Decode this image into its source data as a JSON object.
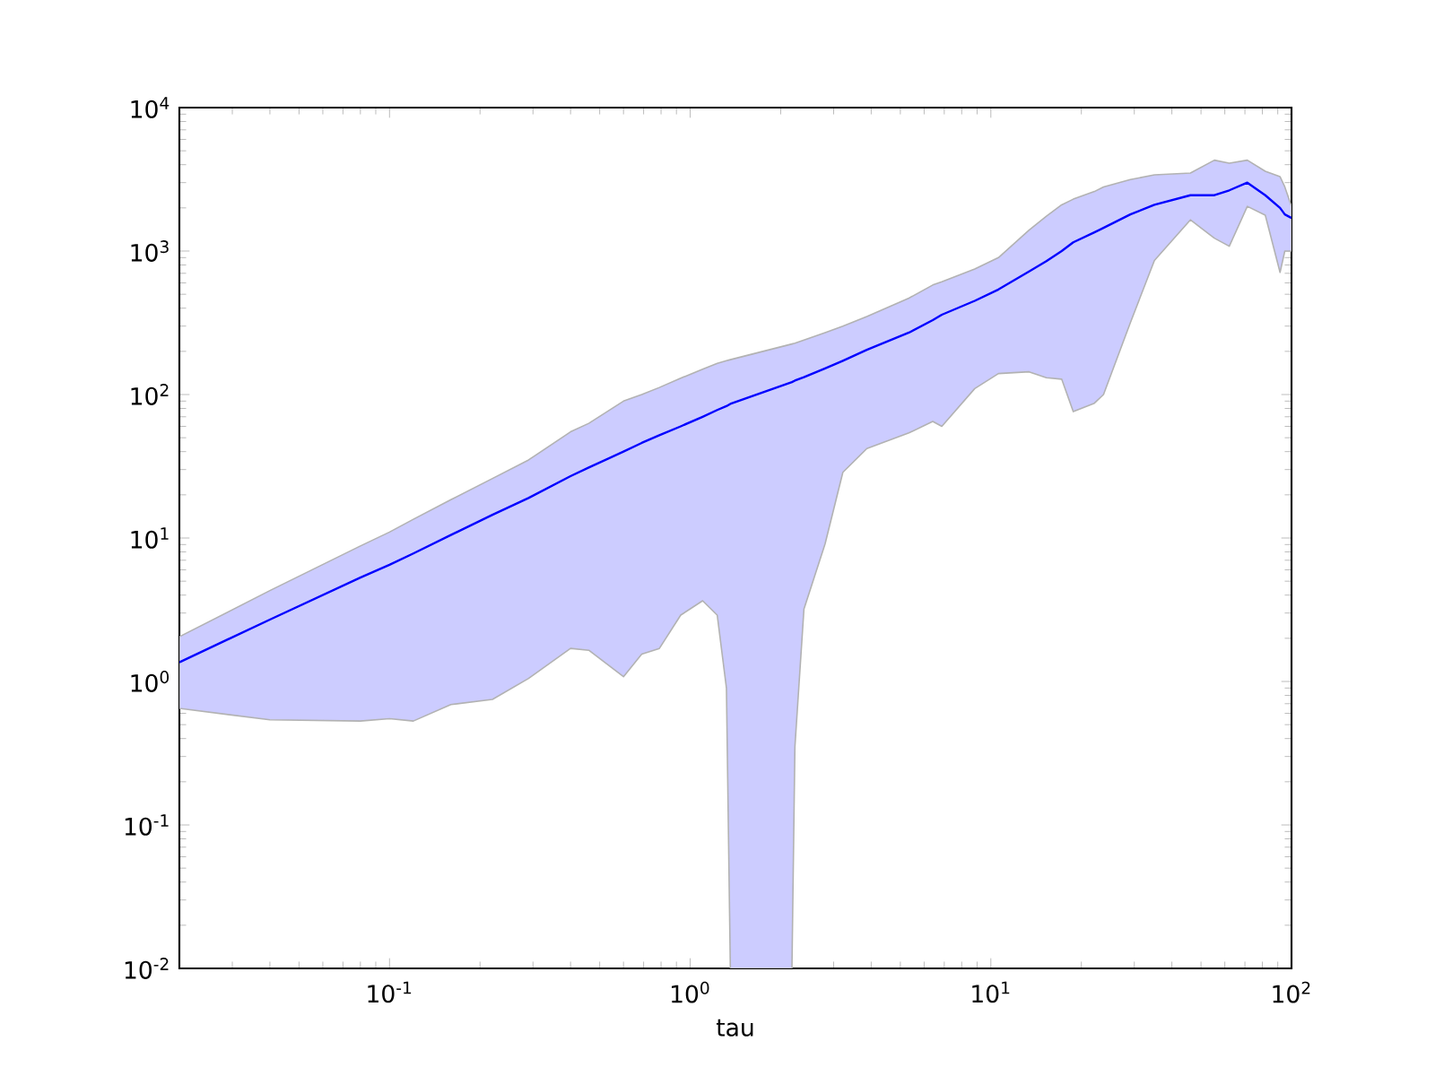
{
  "chart_data": {
    "type": "line",
    "xlabel": "tau",
    "log": "xy",
    "grid": false,
    "xlim": [
      0.02,
      100
    ],
    "ylim": [
      0.01,
      10000
    ],
    "xticks": [
      {
        "value": 0.1,
        "label": "10$^{-1}$"
      },
      {
        "value": 1,
        "label": "10$^{0}$"
      },
      {
        "value": 10,
        "label": "10$^{1}$"
      },
      {
        "value": 100,
        "label": "10$^{2}$"
      }
    ],
    "yticks": [
      {
        "value": 0.01,
        "label": "10$^{-2}$"
      },
      {
        "value": 0.1,
        "label": "10$^{-1}$"
      },
      {
        "value": 1,
        "label": "10$^{0}$"
      },
      {
        "value": 10,
        "label": "10$^{1}$"
      },
      {
        "value": 100,
        "label": "10$^{2}$"
      },
      {
        "value": 1000,
        "label": "10$^{3}$"
      },
      {
        "value": 10000,
        "label": "10$^{4}$"
      }
    ],
    "x": [
      0.02,
      0.04,
      0.08,
      0.1,
      0.12,
      0.16,
      0.22,
      0.29,
      0.4,
      0.46,
      0.6,
      0.69,
      0.79,
      0.93,
      1.1,
      1.23,
      1.32,
      1.36,
      2.18,
      2.23,
      2.39,
      2.81,
      3.22,
      3.87,
      5.34,
      6.41,
      6.87,
      8.84,
      10.6,
      13.4,
      15.3,
      17.2,
      18.8,
      22.1,
      23.7,
      29.1,
      35,
      46.1,
      55.4,
      62.1,
      71.3,
      81.8,
      91.6,
      95,
      100
    ],
    "series": [
      {
        "color": "#0000ff",
        "line_style": "solid",
        "marker": "none",
        "values": [
          1.36,
          2.7,
          5.3,
          6.5,
          7.8,
          10.5,
          14.5,
          19,
          27,
          31,
          40,
          46,
          52,
          60,
          70,
          78,
          83,
          86,
          122,
          125,
          132,
          152,
          172,
          205,
          270,
          330,
          360,
          450,
          540,
          720,
          850,
          1000,
          1150,
          1350,
          1450,
          1800,
          2100,
          2450,
          2450,
          2650,
          3000,
          2450,
          2000,
          1800,
          1700
        ],
        "lower": [
          0.65,
          0.54,
          0.53,
          0.55,
          0.53,
          0.69,
          0.75,
          1.05,
          1.7,
          1.65,
          1.08,
          1.55,
          1.7,
          2.9,
          3.65,
          2.9,
          0.9,
          0.01,
          0.01,
          0.35,
          3.2,
          9.1,
          28.7,
          42,
          54,
          65,
          60,
          110,
          140,
          144,
          131,
          128,
          76,
          87,
          100,
          316,
          860,
          1650,
          1230,
          1080,
          2050,
          1780,
          710,
          1000,
          1000
        ],
        "upper": [
          2.05,
          4.3,
          8.8,
          11,
          13.5,
          18.5,
          26,
          35,
          55,
          63,
          90,
          100,
          112,
          130,
          150,
          165,
          172,
          175,
          225,
          228,
          240,
          270,
          300,
          350,
          470,
          580,
          610,
          750,
          900,
          1400,
          1750,
          2100,
          2300,
          2600,
          2800,
          3150,
          3400,
          3500,
          4300,
          4100,
          4300,
          3600,
          3300,
          2800,
          2050
        ]
      }
    ]
  }
}
